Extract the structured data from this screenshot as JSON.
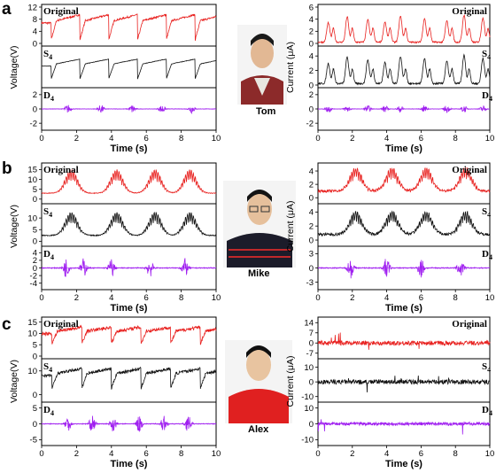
{
  "figure": {
    "panels": [
      {
        "label": "a",
        "person": "Tom"
      },
      {
        "label": "b",
        "person": "Mike"
      },
      {
        "label": "c",
        "person": "Alex"
      }
    ],
    "trace_labels": {
      "original": "Original",
      "s_main": "S",
      "d_main": "D",
      "sub": "4"
    },
    "colors": {
      "original": "#e8201e",
      "s4": "#111111",
      "d4": "#a020f0"
    }
  },
  "chart_data": [
    {
      "panel": "a",
      "side": "left",
      "type": "line",
      "xlabel": "Time (s)",
      "ylabel": "Voltage(V)",
      "xlim": [
        0,
        10
      ],
      "xticks": [
        0,
        2,
        4,
        6,
        8,
        10
      ],
      "tracks": [
        {
          "name": "Original",
          "yticks": [
            0,
            4,
            8,
            12
          ],
          "ylim": [
            0,
            12
          ],
          "period": 1.65,
          "phase": 0.55,
          "base": 7.5,
          "dip": 7,
          "jitter": 0.6
        },
        {
          "name": "S4",
          "yticks": [],
          "ylim": [
            0,
            12
          ],
          "period": 1.65,
          "phase": 0.55,
          "base": 7,
          "dip": 5.5,
          "jitter": 0.15
        },
        {
          "name": "D4",
          "yticks": [
            -2,
            0,
            2
          ],
          "ylim": [
            -2.6,
            2.6
          ],
          "bursts": [
            1.5,
            3.4,
            5.2,
            6.9,
            8.6
          ],
          "amp": 0.6
        }
      ]
    },
    {
      "panel": "a",
      "side": "right",
      "type": "line",
      "xlabel": "Time (s)",
      "ylabel": "Current (μA)",
      "xlim": [
        0,
        10
      ],
      "xticks": [
        0,
        2,
        4,
        6,
        8,
        10
      ],
      "tracks": [
        {
          "name": "Original",
          "yticks": [
            0,
            2,
            4,
            6
          ],
          "ylim": [
            0,
            6
          ],
          "peaks": [
            0.6,
            1.7,
            2.9,
            3.9,
            4.8,
            6.2,
            7.5,
            8.5,
            9.6
          ],
          "peak_h": 4.6,
          "base": 0.2
        },
        {
          "name": "S4",
          "yticks": [
            0,
            2,
            4
          ],
          "ylim": [
            0,
            5
          ],
          "peaks": [
            0.6,
            1.7,
            2.9,
            3.9,
            4.8,
            6.2,
            7.5,
            8.5,
            9.6
          ],
          "peak_h": 4.0,
          "base": 0.2
        },
        {
          "name": "D4",
          "yticks": [
            -2,
            0,
            2
          ],
          "ylim": [
            -2.6,
            2.6
          ],
          "bursts": [
            0.6,
            1.7,
            2.9,
            3.9,
            4.8,
            6.2,
            7.5,
            8.5,
            9.6
          ],
          "amp": 0.5
        }
      ]
    },
    {
      "panel": "b",
      "side": "left",
      "type": "line",
      "xlabel": "Time (s)",
      "ylabel": "Voltage(V)",
      "xlim": [
        0,
        10
      ],
      "xticks": [
        0,
        2,
        4,
        6,
        8,
        10
      ],
      "tracks": [
        {
          "name": "Original",
          "yticks": [
            0,
            5,
            10,
            15
          ],
          "ylim": [
            -1,
            17
          ],
          "bursts": [
            1.4,
            4.0,
            6.2,
            8.2
          ],
          "base": 3,
          "peak_h": 12
        },
        {
          "name": "S4",
          "yticks": [
            0,
            5,
            10
          ],
          "ylim": [
            -1,
            15
          ],
          "bursts": [
            1.4,
            4.0,
            6.2,
            8.2
          ],
          "base": 2.5,
          "peak_h": 10
        },
        {
          "name": "D4",
          "yticks": [
            -4,
            -2,
            0,
            2,
            4
          ],
          "ylim": [
            -5,
            5
          ],
          "bursts": [
            1.4,
            2.4,
            4.0,
            6.2,
            8.2
          ],
          "amp": 2.5
        }
      ]
    },
    {
      "panel": "b",
      "side": "right",
      "type": "line",
      "xlabel": "Time (s)",
      "ylabel": "Current (μA)",
      "xlim": [
        0,
        10
      ],
      "xticks": [
        0,
        2,
        4,
        6,
        8,
        10
      ],
      "tracks": [
        {
          "name": "Original",
          "yticks": [
            0,
            2,
            4
          ],
          "ylim": [
            -0.5,
            4.8
          ],
          "bursts": [
            1.9,
            4.0,
            6.0,
            8.3
          ],
          "base": 1,
          "peak_h": 3.5
        },
        {
          "name": "S4",
          "yticks": [
            0,
            2,
            4
          ],
          "ylim": [
            -0.5,
            4.8
          ],
          "bursts": [
            1.9,
            4.0,
            6.0,
            8.3
          ],
          "base": 0.8,
          "peak_h": 3.3
        },
        {
          "name": "D4",
          "yticks": [
            -3,
            0,
            3
          ],
          "ylim": [
            -4,
            4
          ],
          "bursts": [
            1.9,
            4.0,
            6.0,
            8.3
          ],
          "amp": 2.2
        }
      ]
    },
    {
      "panel": "c",
      "side": "left",
      "type": "line",
      "xlabel": "Time (s)",
      "ylabel": "Voltage(V)",
      "xlim": [
        0,
        10
      ],
      "xticks": [
        0,
        2,
        4,
        6,
        8,
        10
      ],
      "tracks": [
        {
          "name": "Original",
          "yticks": [
            0,
            5,
            10,
            15
          ],
          "ylim": [
            0,
            16
          ],
          "period": 1.7,
          "phase": 0.6,
          "base": 11,
          "dip": 6,
          "jitter": 1.5
        },
        {
          "name": "S4",
          "yticks": [
            0,
            10
          ],
          "ylim": [
            -2,
            14
          ],
          "period": 1.7,
          "phase": 0.6,
          "base": 9,
          "dip": 7,
          "jitter": 1.2
        },
        {
          "name": "D4",
          "yticks": [
            -5,
            0,
            5
          ],
          "ylim": [
            -6,
            6
          ],
          "bursts": [
            1.5,
            2.9,
            4.1,
            5.6,
            7.0,
            8.4
          ],
          "amp": 2.5
        }
      ]
    },
    {
      "panel": "c",
      "side": "right",
      "type": "line",
      "xlabel": "Time (s)",
      "ylabel": "Current (μA)",
      "xlim": [
        0,
        10
      ],
      "xticks": [
        0,
        2,
        4,
        6,
        8,
        10
      ],
      "tracks": [
        {
          "name": "Original",
          "yticks": [
            -7,
            0,
            7,
            14
          ],
          "ylim": [
            -9,
            16
          ],
          "noise": 3,
          "spikes": 10
        },
        {
          "name": "S4",
          "yticks": [
            -10,
            0,
            10
          ],
          "ylim": [
            -12,
            14
          ],
          "noise": 3,
          "spikes": 8
        },
        {
          "name": "D4",
          "yticks": [
            -10,
            0,
            10
          ],
          "ylim": [
            -12,
            12
          ],
          "noise": 2,
          "spikes": 8
        }
      ]
    }
  ]
}
